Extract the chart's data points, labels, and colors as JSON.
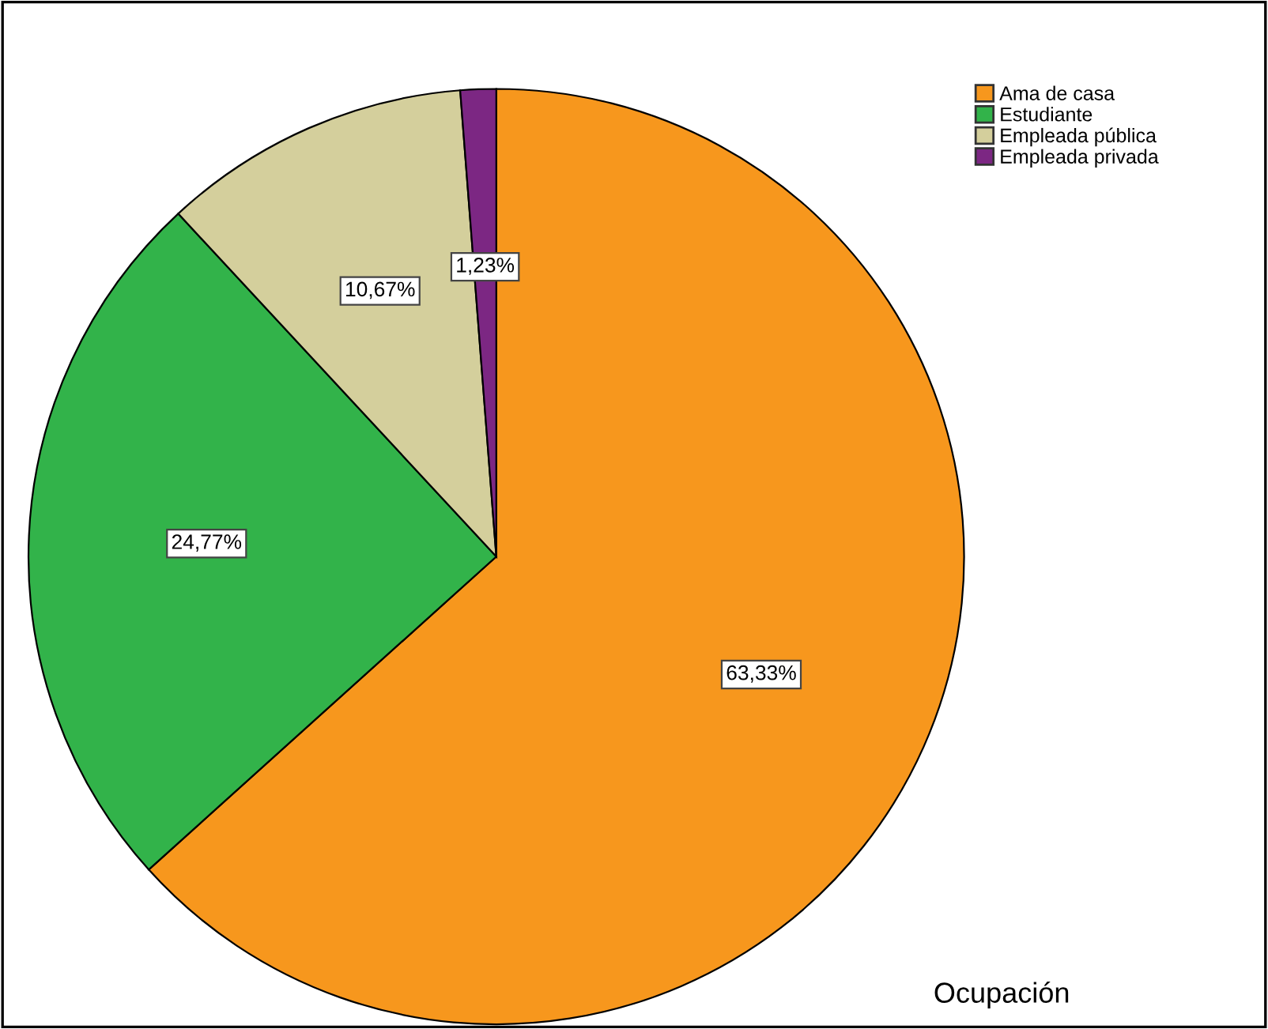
{
  "chart_data": {
    "type": "pie",
    "title": "Ocupación",
    "categories": [
      "Ama de casa",
      "Estudiante",
      "Empleada pública",
      "Empleada privada"
    ],
    "values": [
      63.33,
      24.77,
      10.67,
      1.23
    ],
    "value_labels": [
      "63,33%",
      "24,77%",
      "10,67%",
      "1,23%"
    ],
    "colors": [
      "#f7971d",
      "#32b34a",
      "#d4cf9c",
      "#7c2783"
    ],
    "legend": "top right"
  }
}
